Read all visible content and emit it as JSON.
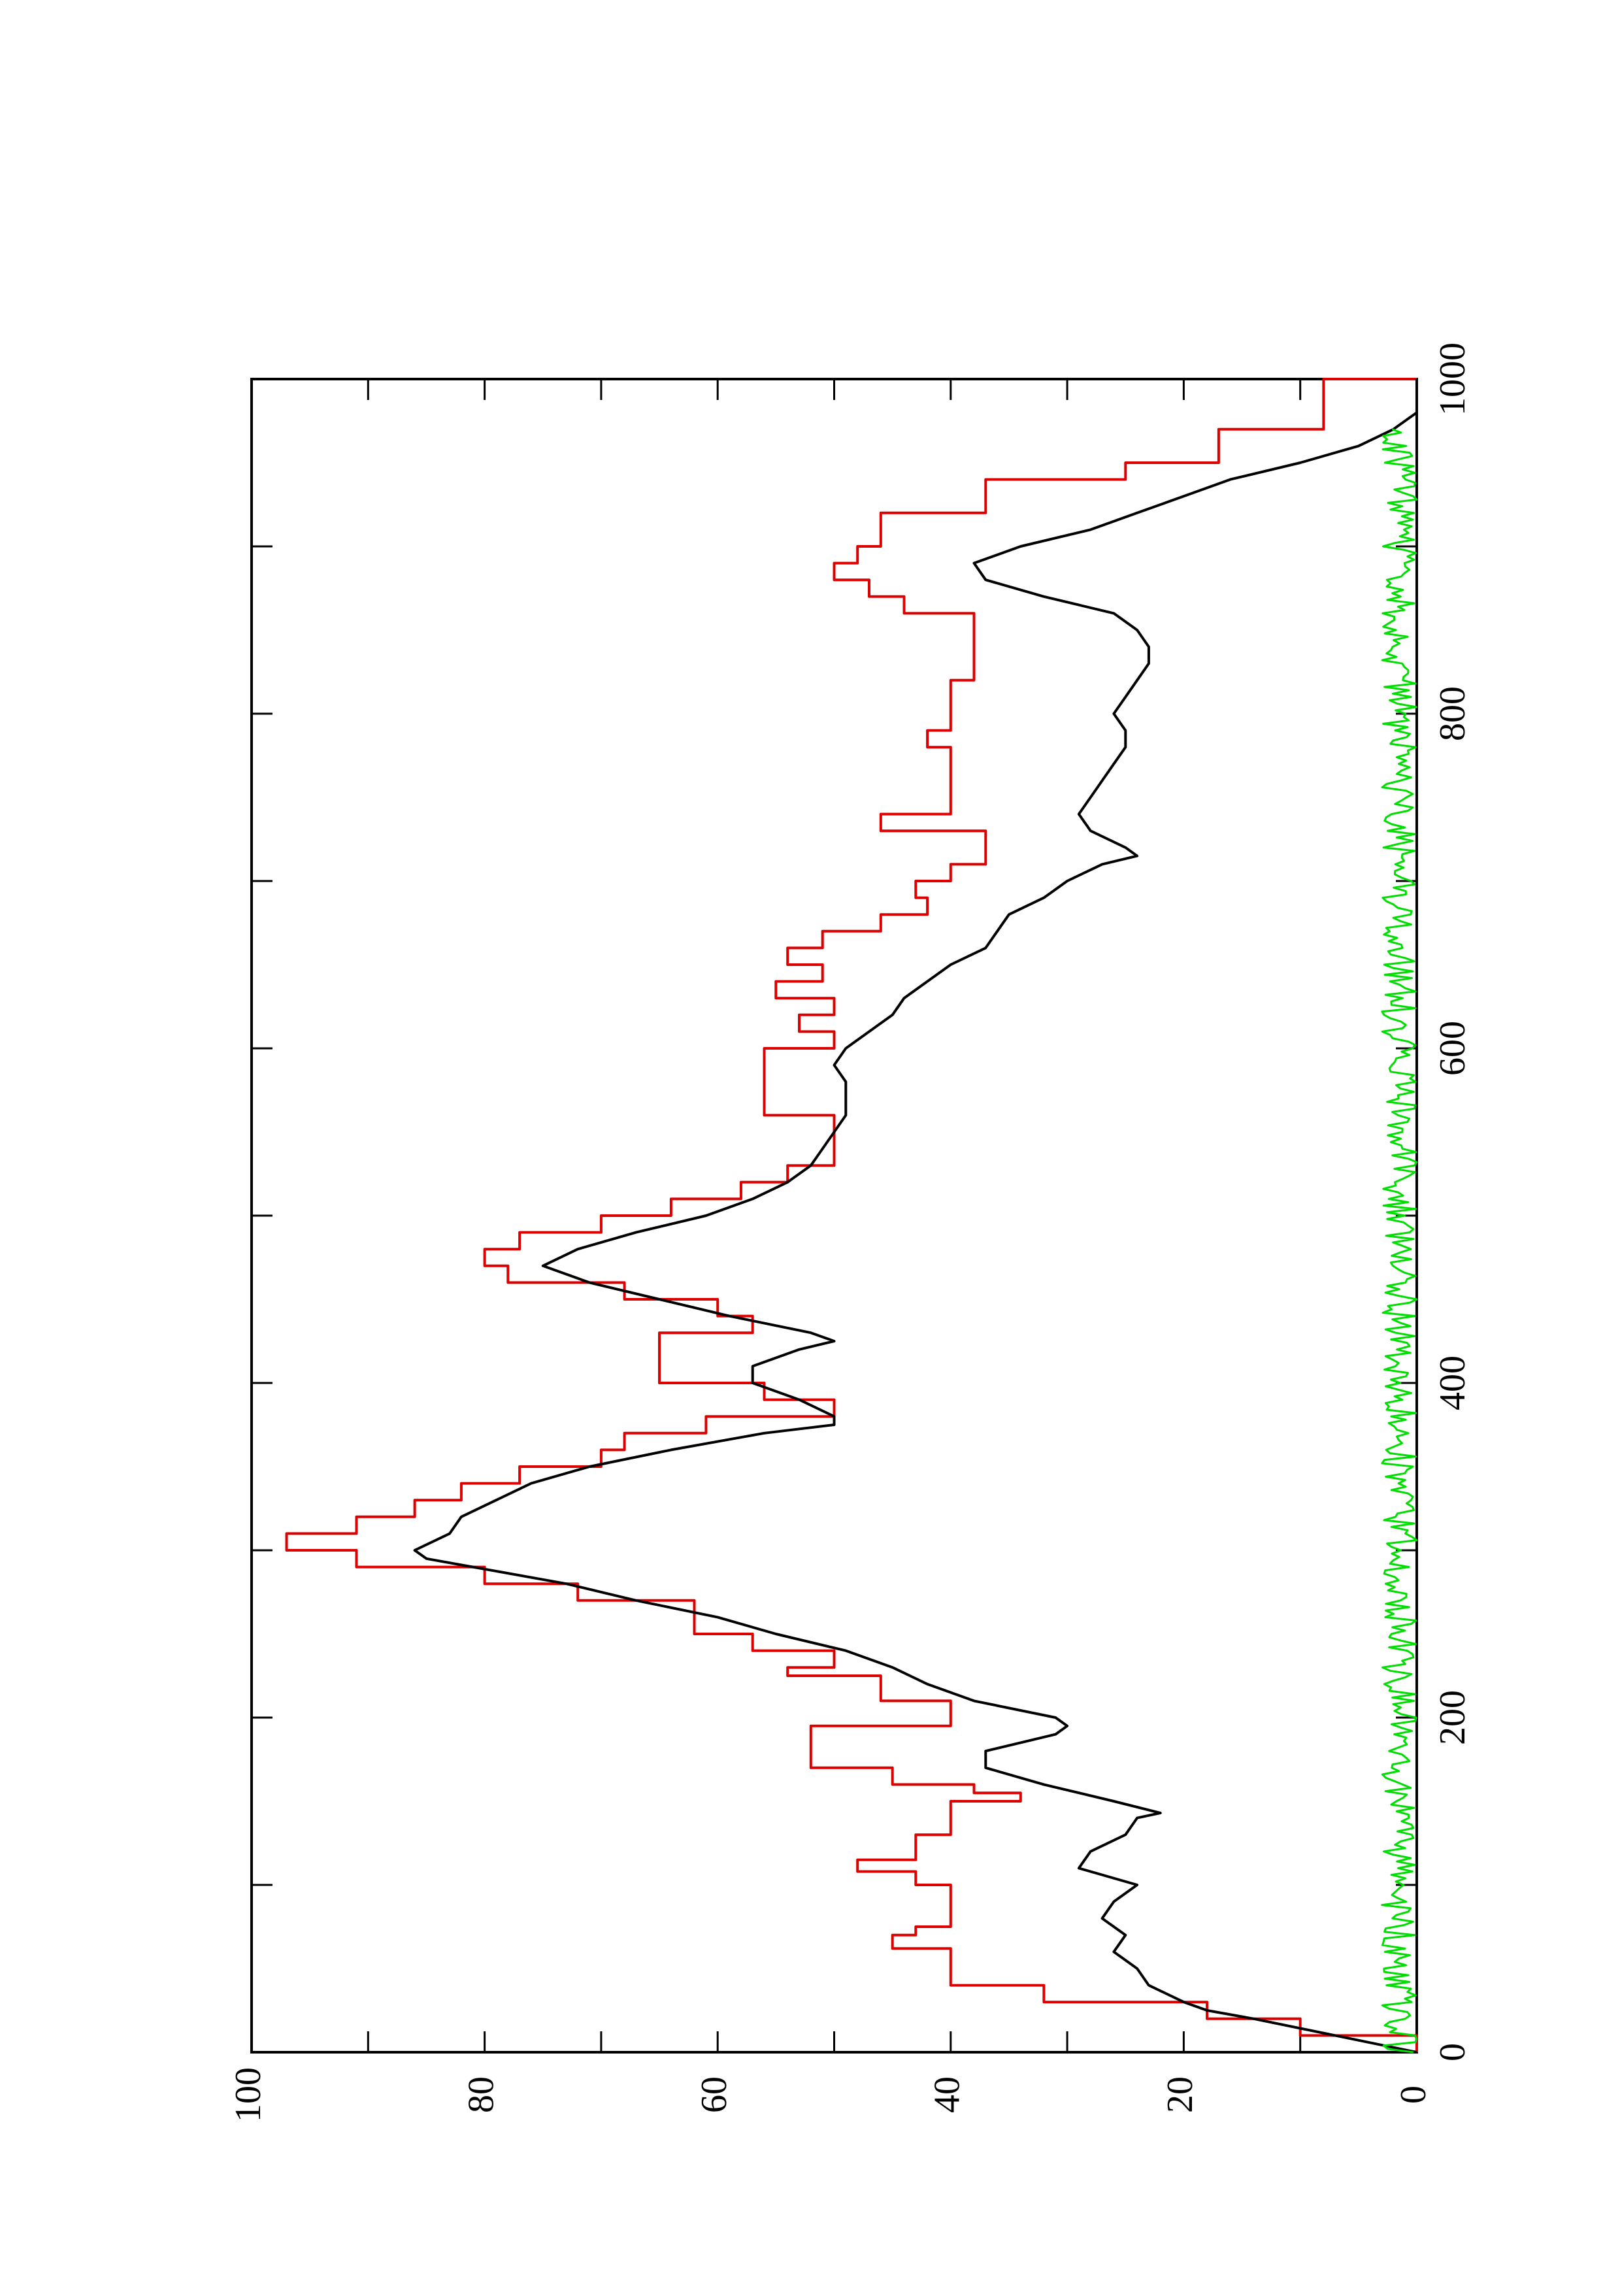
{
  "chart_data": {
    "type": "line",
    "orientation": "rotated-90-counterclockwise",
    "title": "",
    "xlabel": "",
    "ylabel": "",
    "xlim": [
      0,
      1000
    ],
    "ylim": [
      0,
      100
    ],
    "x_ticks": [
      "0",
      "200",
      "400",
      "600",
      "800",
      "1000"
    ],
    "y_ticks": [
      "0",
      "20",
      "40",
      "60",
      "80",
      "100"
    ],
    "x_minor_step": 100,
    "y_minor_step": 10,
    "grid": false,
    "legend": "none",
    "series": [
      {
        "color": "#dd0000",
        "style": "step",
        "x": [
          0,
          10,
          20,
          30,
          40,
          55,
          62,
          70,
          75,
          90,
          100,
          108,
          115,
          130,
          140,
          150,
          155,
          160,
          170,
          180,
          195,
          205,
          210,
          225,
          230,
          240,
          250,
          270,
          280,
          290,
          300,
          310,
          320,
          330,
          340,
          350,
          360,
          370,
          380,
          390,
          400,
          420,
          430,
          440,
          450,
          460,
          470,
          480,
          490,
          500,
          510,
          520,
          530,
          550,
          560,
          590,
          600,
          610,
          620,
          630,
          640,
          650,
          660,
          670,
          680,
          690,
          700,
          710,
          730,
          740,
          770,
          780,
          790,
          800,
          820,
          850,
          860,
          870,
          880,
          890,
          900,
          920,
          940,
          950,
          970,
          1000
        ],
        "y": [
          0,
          10,
          18,
          32,
          40,
          40,
          45,
          43,
          40,
          40,
          43,
          48,
          43,
          40,
          40,
          34,
          38,
          45,
          52,
          52,
          40,
          40,
          46,
          54,
          50,
          57,
          62,
          72,
          80,
          91,
          97,
          91,
          86,
          82,
          77,
          70,
          68,
          61,
          50,
          56,
          65,
          65,
          57,
          60,
          68,
          78,
          80,
          77,
          70,
          64,
          58,
          54,
          50,
          50,
          56,
          56,
          50,
          53,
          50,
          55,
          51,
          54,
          51,
          46,
          42,
          43,
          40,
          37,
          46,
          40,
          40,
          42,
          40,
          40,
          38,
          38,
          44,
          47,
          50,
          48,
          46,
          37,
          25,
          17,
          8,
          0
        ]
      },
      {
        "color": "#000000",
        "style": "line",
        "x": [
          0,
          10,
          20,
          25,
          30,
          40,
          50,
          60,
          70,
          80,
          90,
          100,
          110,
          120,
          130,
          140,
          143,
          150,
          160,
          170,
          180,
          190,
          195,
          200,
          210,
          220,
          230,
          240,
          250,
          260,
          270,
          280,
          290,
          295,
          300,
          310,
          320,
          330,
          340,
          350,
          360,
          370,
          375,
          380,
          390,
          400,
          410,
          420,
          425,
          430,
          440,
          450,
          460,
          470,
          480,
          490,
          500,
          510,
          520,
          530,
          540,
          550,
          560,
          570,
          580,
          590,
          600,
          610,
          620,
          630,
          640,
          650,
          660,
          670,
          680,
          690,
          700,
          710,
          715,
          720,
          730,
          740,
          750,
          760,
          770,
          780,
          790,
          800,
          810,
          820,
          830,
          840,
          850,
          860,
          870,
          880,
          890,
          900,
          910,
          920,
          930,
          940,
          950,
          960,
          970,
          980,
          990,
          1000
        ],
        "y": [
          0,
          7,
          14,
          18,
          20,
          23,
          24,
          26,
          25,
          27,
          26,
          24,
          29,
          28,
          25,
          24,
          22,
          26,
          32,
          37,
          37,
          31,
          30,
          31,
          38,
          42,
          45,
          49,
          55,
          60,
          67,
          73,
          81,
          85,
          86,
          83,
          82,
          79,
          76,
          71,
          64,
          56,
          50,
          50,
          53,
          57,
          57,
          53,
          50,
          52,
          59,
          65,
          71,
          75,
          72,
          67,
          61,
          57,
          54,
          52,
          51,
          50,
          49,
          49,
          49,
          50,
          49,
          47,
          45,
          44,
          42,
          40,
          37,
          36,
          35,
          32,
          30,
          27,
          24,
          25,
          28,
          29,
          28,
          27,
          26,
          25,
          25,
          26,
          25,
          24,
          23,
          23,
          24,
          26,
          32,
          37,
          38,
          34,
          28,
          24,
          20,
          16,
          10,
          5,
          2,
          0,
          0,
          0
        ]
      },
      {
        "color": "#00dd00",
        "style": "noise",
        "mean": 1,
        "range": [
          0,
          3
        ]
      }
    ]
  }
}
